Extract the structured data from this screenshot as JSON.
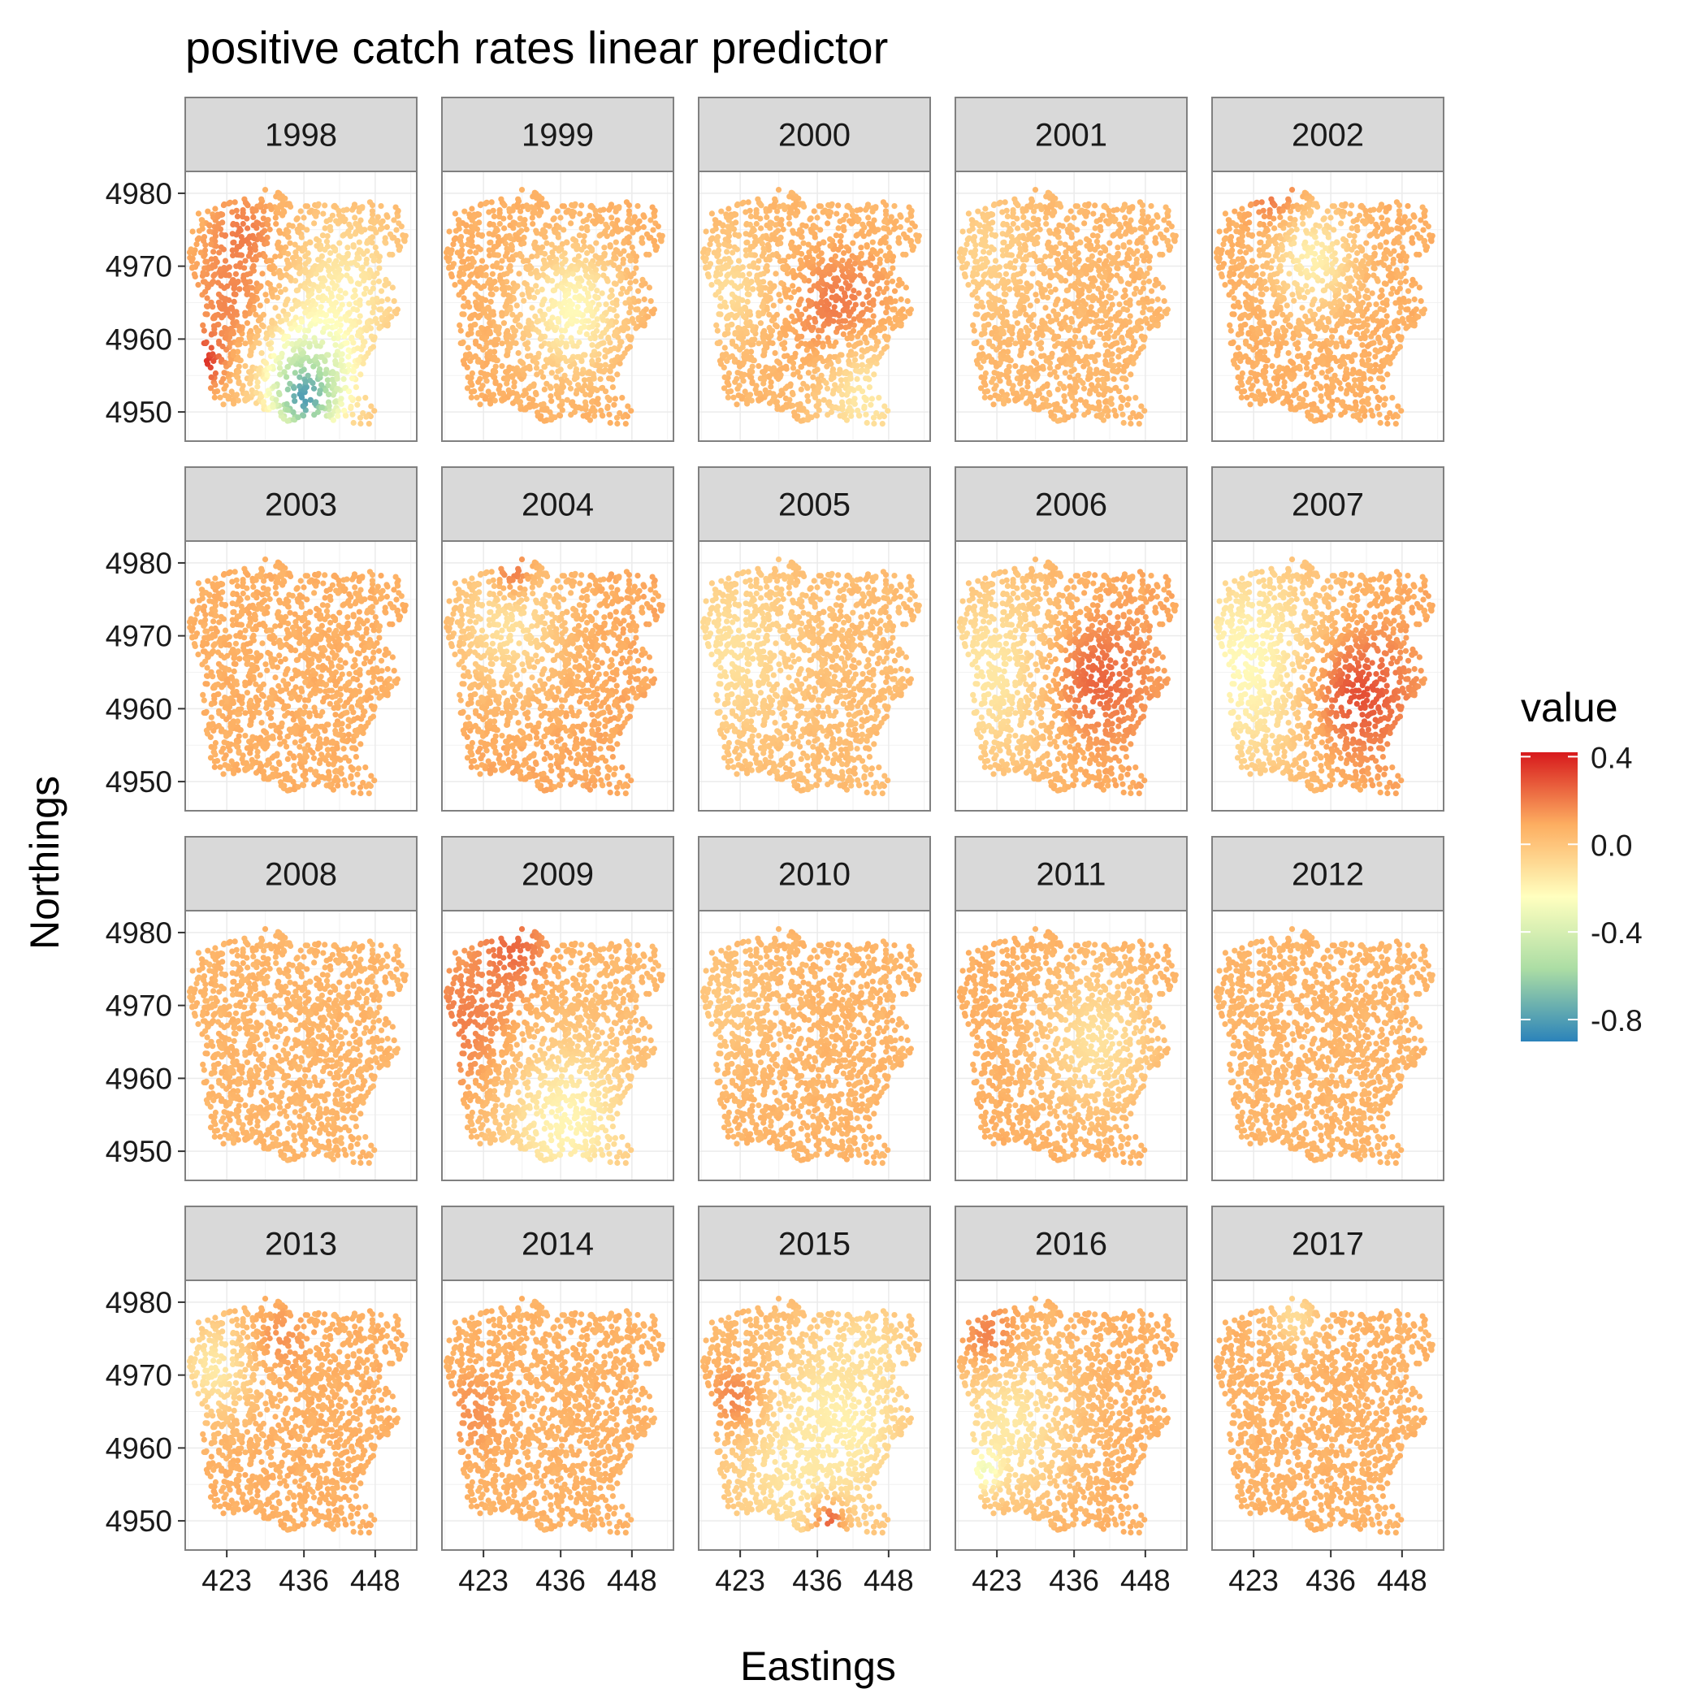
{
  "chart_data": {
    "type": "scatter",
    "title": "positive catch rates linear predictor",
    "xlabel": "Eastings",
    "ylabel": "Northings",
    "x_ticks": [
      "423",
      "436",
      "448"
    ],
    "y_ticks": [
      "4950",
      "4960",
      "4970",
      "4980"
    ],
    "x_tick_values": [
      423,
      436,
      448
    ],
    "y_tick_values": [
      4950,
      4960,
      4970,
      4980
    ],
    "xlim": [
      416,
      455
    ],
    "ylim": [
      4946,
      4983
    ],
    "grid": true,
    "legend": {
      "title": "value",
      "position": "right",
      "labels": [
        "0.4",
        "0.0",
        "-0.4",
        "-0.8"
      ],
      "values": [
        0.4,
        0.0,
        -0.4,
        -0.8
      ],
      "range": [
        -0.9,
        0.42
      ],
      "colors": [
        "#2b83ba",
        "#abdda4",
        "#ffffbf",
        "#fdae61",
        "#d7191c"
      ]
    },
    "baseline_value": 0.05,
    "panels": [
      {
        "label": "1998",
        "baseline": 0.05,
        "hotspots": [
          {
            "e": 426,
            "n": 4974,
            "v": 0.22,
            "r": 4
          },
          {
            "e": 425,
            "n": 4965,
            "v": 0.2,
            "r": 6
          },
          {
            "e": 419,
            "n": 4957,
            "v": 0.38,
            "r": 2.5
          },
          {
            "e": 443,
            "n": 4967,
            "v": -0.15,
            "r": 7
          },
          {
            "e": 437,
            "n": 4955,
            "v": -0.45,
            "r": 6
          },
          {
            "e": 436,
            "n": 4952,
            "v": -0.8,
            "r": 3
          }
        ]
      },
      {
        "label": "1999",
        "baseline": 0.08,
        "hotspots": [
          {
            "e": 438,
            "n": 4964,
            "v": -0.22,
            "r": 6
          }
        ]
      },
      {
        "label": "2000",
        "baseline": 0.05,
        "hotspots": [
          {
            "e": 440,
            "n": 4963,
            "v": 0.24,
            "r": 6
          },
          {
            "e": 421,
            "n": 4967,
            "v": -0.1,
            "r": 5
          },
          {
            "e": 444,
            "n": 4952,
            "v": -0.15,
            "r": 6
          }
        ]
      },
      {
        "label": "2001",
        "baseline": 0.05,
        "hotspots": [
          {
            "e": 421,
            "n": 4972,
            "v": -0.06,
            "r": 6
          }
        ]
      },
      {
        "label": "2002",
        "baseline": 0.08,
        "hotspots": [
          {
            "e": 427,
            "n": 4979,
            "v": 0.25,
            "r": 3
          },
          {
            "e": 433,
            "n": 4971,
            "v": -0.18,
            "r": 5
          }
        ]
      },
      {
        "label": "2003",
        "baseline": 0.08,
        "hotspots": []
      },
      {
        "label": "2004",
        "baseline": 0.1,
        "hotspots": [
          {
            "e": 427,
            "n": 4972,
            "v": -0.12,
            "r": 7
          },
          {
            "e": 428,
            "n": 4979,
            "v": 0.2,
            "r": 2.5
          }
        ]
      },
      {
        "label": "2005",
        "baseline": 0.03,
        "hotspots": [
          {
            "e": 421,
            "n": 4968,
            "v": -0.12,
            "r": 8
          }
        ]
      },
      {
        "label": "2006",
        "baseline": 0.1,
        "hotspots": [
          {
            "e": 423,
            "n": 4965,
            "v": -0.15,
            "r": 10
          },
          {
            "e": 440,
            "n": 4964,
            "v": 0.25,
            "r": 6
          }
        ]
      },
      {
        "label": "2007",
        "baseline": 0.1,
        "hotspots": [
          {
            "e": 422,
            "n": 4966,
            "v": -0.22,
            "r": 11
          },
          {
            "e": 441,
            "n": 4962,
            "v": 0.3,
            "r": 6
          }
        ]
      },
      {
        "label": "2008",
        "baseline": 0.06,
        "hotspots": []
      },
      {
        "label": "2009",
        "baseline": 0.05,
        "hotspots": [
          {
            "e": 420,
            "n": 4967,
            "v": 0.2,
            "r": 8
          },
          {
            "e": 428,
            "n": 4978,
            "v": 0.25,
            "r": 4
          },
          {
            "e": 437,
            "n": 4954,
            "v": -0.2,
            "r": 8
          }
        ]
      },
      {
        "label": "2010",
        "baseline": 0.06,
        "hotspots": [
          {
            "e": 420,
            "n": 4970,
            "v": -0.02,
            "r": 6
          }
        ]
      },
      {
        "label": "2011",
        "baseline": 0.08,
        "hotspots": [
          {
            "e": 440,
            "n": 4965,
            "v": -0.12,
            "r": 7
          }
        ]
      },
      {
        "label": "2012",
        "baseline": 0.06,
        "hotspots": []
      },
      {
        "label": "2013",
        "baseline": 0.08,
        "hotspots": [
          {
            "e": 421,
            "n": 4971,
            "v": -0.15,
            "r": 5
          },
          {
            "e": 432,
            "n": 4975,
            "v": 0.15,
            "r": 3
          }
        ]
      },
      {
        "label": "2014",
        "baseline": 0.07,
        "hotspots": [
          {
            "e": 421,
            "n": 4965,
            "v": 0.15,
            "r": 4
          }
        ]
      },
      {
        "label": "2015",
        "baseline": 0.05,
        "hotspots": [
          {
            "e": 440,
            "n": 4964,
            "v": -0.35,
            "r": 5
          },
          {
            "e": 434,
            "n": 4958,
            "v": -0.15,
            "r": 10
          },
          {
            "e": 444,
            "n": 4972,
            "v": -0.12,
            "r": 6
          },
          {
            "e": 422,
            "n": 4967,
            "v": 0.18,
            "r": 3.5
          },
          {
            "e": 438,
            "n": 4950,
            "v": 0.25,
            "r": 2
          }
        ]
      },
      {
        "label": "2016",
        "baseline": 0.08,
        "hotspots": [
          {
            "e": 422,
            "n": 4974,
            "v": 0.33,
            "r": 3.5
          },
          {
            "e": 425,
            "n": 4963,
            "v": -0.15,
            "r": 8
          },
          {
            "e": 421,
            "n": 4957,
            "v": -0.3,
            "r": 2
          }
        ]
      },
      {
        "label": "2017",
        "baseline": 0.07,
        "hotspots": [
          {
            "e": 430,
            "n": 4978,
            "v": -0.1,
            "r": 3
          }
        ]
      }
    ]
  }
}
